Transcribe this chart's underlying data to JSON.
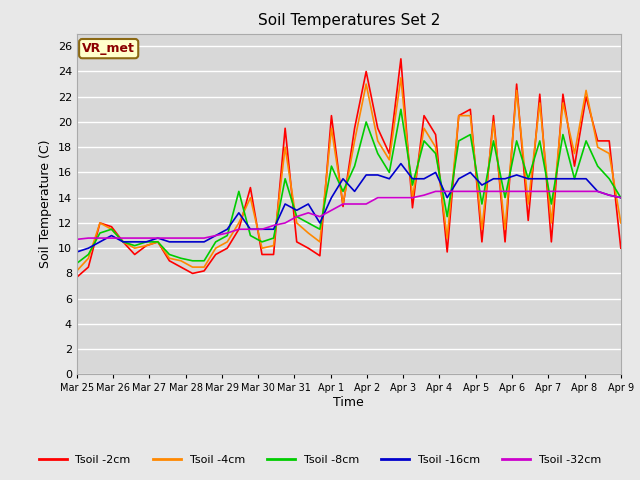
{
  "title": "Soil Temperatures Set 2",
  "xlabel": "Time",
  "ylabel": "Soil Temperature (C)",
  "annotation": "VR_met",
  "ylim": [
    0,
    27
  ],
  "yticks": [
    0,
    2,
    4,
    6,
    8,
    10,
    12,
    14,
    16,
    18,
    20,
    22,
    24,
    26
  ],
  "fig_bg": "#e8e8e8",
  "plot_bg": "#d8d8d8",
  "grid_color": "#ffffff",
  "legend_entries": [
    "Tsoil -2cm",
    "Tsoil -4cm",
    "Tsoil -8cm",
    "Tsoil -16cm",
    "Tsoil -32cm"
  ],
  "line_colors": [
    "#ff0000",
    "#ff8800",
    "#00cc00",
    "#0000cc",
    "#cc00cc"
  ],
  "x_labels": [
    "Mar 25",
    "Mar 26",
    "Mar 27",
    "Mar 28",
    "Mar 29",
    "Mar 30",
    "Mar 31",
    "Apr 1",
    "Apr 2",
    "Apr 3",
    "Apr 4",
    "Apr 5",
    "Apr 6",
    "Apr 7",
    "Apr 8",
    "Apr 9"
  ],
  "tsoil_2cm": [
    7.7,
    8.5,
    12.0,
    11.7,
    10.5,
    9.5,
    10.2,
    10.5,
    9.0,
    8.5,
    8.0,
    8.2,
    9.5,
    10.0,
    11.5,
    14.8,
    9.5,
    9.5,
    19.5,
    10.5,
    10.0,
    9.4,
    20.5,
    13.3,
    19.5,
    24.0,
    19.5,
    17.5,
    25.0,
    13.2,
    20.5,
    19.0,
    9.7,
    20.5,
    21.0,
    10.5,
    20.5,
    10.5,
    23.0,
    12.2,
    22.2,
    10.5,
    22.2,
    16.5,
    22.0,
    18.5,
    18.5,
    10.0
  ],
  "tsoil_4cm": [
    8.2,
    9.2,
    12.0,
    11.5,
    10.5,
    10.0,
    10.2,
    10.5,
    9.2,
    9.0,
    8.5,
    8.5,
    10.0,
    10.5,
    12.0,
    14.0,
    10.0,
    10.2,
    18.0,
    12.0,
    11.2,
    10.5,
    19.5,
    13.5,
    18.5,
    23.0,
    18.5,
    17.0,
    23.5,
    14.0,
    19.5,
    18.0,
    10.8,
    20.5,
    20.5,
    11.5,
    20.0,
    11.5,
    22.5,
    13.5,
    21.5,
    12.0,
    21.5,
    17.5,
    22.5,
    18.0,
    17.5,
    12.0
  ],
  "tsoil_8cm": [
    8.8,
    9.5,
    11.2,
    11.5,
    10.5,
    10.2,
    10.5,
    10.5,
    9.5,
    9.2,
    9.0,
    9.0,
    10.5,
    11.0,
    14.5,
    11.0,
    10.5,
    10.8,
    15.5,
    12.5,
    12.0,
    11.5,
    16.5,
    14.5,
    16.5,
    20.0,
    17.5,
    16.0,
    21.0,
    15.0,
    18.5,
    17.5,
    12.5,
    18.5,
    19.0,
    13.5,
    18.5,
    14.0,
    18.5,
    15.5,
    18.5,
    13.5,
    19.0,
    15.5,
    18.5,
    16.5,
    15.5,
    14.0
  ],
  "tsoil_16cm": [
    9.7,
    10.0,
    10.5,
    11.0,
    10.5,
    10.5,
    10.5,
    10.8,
    10.5,
    10.5,
    10.5,
    10.5,
    11.0,
    11.5,
    12.8,
    11.5,
    11.5,
    11.5,
    13.5,
    13.0,
    13.5,
    12.0,
    14.0,
    15.5,
    14.5,
    15.8,
    15.8,
    15.5,
    16.7,
    15.5,
    15.5,
    16.0,
    14.0,
    15.5,
    16.0,
    15.0,
    15.5,
    15.5,
    15.8,
    15.5,
    15.5,
    15.5,
    15.5,
    15.5,
    15.5,
    14.5,
    14.2,
    14.0
  ],
  "tsoil_32cm": [
    10.7,
    10.8,
    10.8,
    10.8,
    10.8,
    10.8,
    10.8,
    10.8,
    10.8,
    10.8,
    10.8,
    10.8,
    11.0,
    11.2,
    11.5,
    11.5,
    11.5,
    11.8,
    12.0,
    12.5,
    12.8,
    12.5,
    13.0,
    13.5,
    13.5,
    13.5,
    14.0,
    14.0,
    14.0,
    14.0,
    14.2,
    14.5,
    14.5,
    14.5,
    14.5,
    14.5,
    14.5,
    14.5,
    14.5,
    14.5,
    14.5,
    14.5,
    14.5,
    14.5,
    14.5,
    14.5,
    14.2,
    14.0
  ]
}
